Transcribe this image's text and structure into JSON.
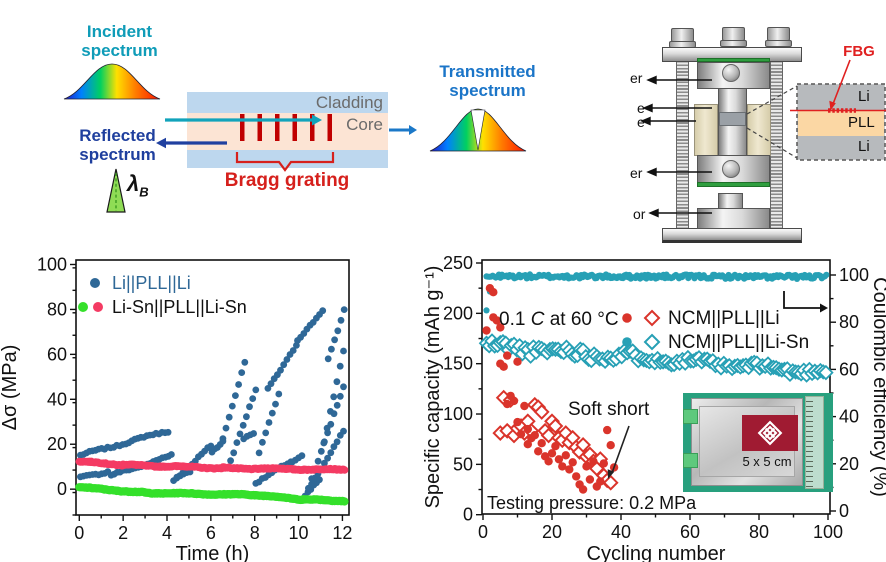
{
  "panel_fbg": {
    "incident": {
      "line1": "Incident",
      "line2": "spectrum",
      "color": "#0f9cb8"
    },
    "reflected": {
      "line1": "Reflected",
      "line2": "spectrum",
      "color": "#1f3f9e"
    },
    "transmitted": {
      "line1": "Transmitted",
      "line2": "spectrum",
      "color": "#1b75c8"
    },
    "cladding_label": "Cladding",
    "core_label": "Core",
    "bragg_label": "Bragg grating",
    "lambda_symbol": "λ",
    "lambda_sub": "B",
    "colors": {
      "cladding_fill": "#bdd7ee",
      "core_fill": "#fce4d4",
      "grating_bar": "#c00000",
      "incident_arrow": "#12a3bb",
      "reflected_arrow": "#2040a0",
      "transmitted_arrow": "#1b78c8",
      "bragg_red": "#d6201c",
      "gray_text": "#6b6b6b"
    }
  },
  "panel_cell": {
    "fbg_label": "FBG",
    "left_labels": [
      "er",
      "e",
      "e",
      "er",
      "or"
    ],
    "inset_labels": {
      "top": "Li",
      "mid": "PLL",
      "bottom": "Li"
    },
    "colors": {
      "fbg_red": "#e02020",
      "li_gray": "#b7babd",
      "pll_peach": "#fbd7a4"
    }
  },
  "chart_data": [
    {
      "type": "scatter",
      "title": "",
      "xlabel": "Time (h)",
      "ylabel": "Δσ (MPa)",
      "xlim": [
        -0.15,
        12.3
      ],
      "ylim": [
        -11.5,
        102
      ],
      "x_ticks": [
        0,
        2,
        4,
        6,
        8,
        10,
        12
      ],
      "y_ticks": [
        0,
        20,
        40,
        60,
        80,
        100
      ],
      "x_minor_step": 1,
      "y_minor_step": 10,
      "grid": false,
      "legend_position": "top-left",
      "legend": [
        {
          "label": "Li||PLL||Li",
          "markers": [
            "#2f6897"
          ],
          "label_color": "#2f6897"
        },
        {
          "label": "Li-Sn||PLL||Li-Sn",
          "markers": [
            "#35e02b",
            "#f43b63"
          ],
          "label_color": "#111111"
        }
      ],
      "series": [
        {
          "name": "Li||PLL||Li stress change",
          "marker": "circle",
          "r": 3.4,
          "color": "#2f6897",
          "step": 0.14,
          "wiggle": 0.7,
          "segments": [
            [
              0.05,
              15,
              4.05,
              26
            ],
            [
              0.05,
              5,
              1.3,
              8
            ],
            [
              1.45,
              6,
              4.2,
              15
            ],
            [
              4.3,
              4,
              6.0,
              19
            ],
            [
              4.45,
              5.5,
              5.05,
              7.5
            ],
            [
              6.05,
              17,
              6.55,
              21
            ],
            [
              6.55,
              22,
              7.55,
              57
            ],
            [
              6.9,
              13,
              8.05,
              44
            ],
            [
              7.5,
              22,
              7.95,
              25
            ],
            [
              8.05,
              3,
              9.65,
              12
            ],
            [
              8.2,
              16,
              9.1,
              42
            ],
            [
              8.6,
              45,
              9.9,
              64
            ],
            [
              9.95,
              66,
              11.1,
              80
            ],
            [
              9.7,
              12,
              10.15,
              15
            ],
            [
              10.3,
              -3,
              10.95,
              4
            ],
            [
              10.45,
              0,
              12.05,
              26
            ],
            [
              10.6,
              5,
              12.05,
              45
            ],
            [
              11.15,
              20,
              12.05,
              62
            ],
            [
              11.35,
              58,
              12.08,
              80
            ]
          ]
        },
        {
          "name": "Li-Sn||PLL||Li-Sn stress change (pink)",
          "marker": "circle",
          "r": 3.8,
          "color": "#f43b63",
          "step": 0.05,
          "wiggle": 0.45,
          "segments": [
            [
              0,
              12.3,
              2,
              10.8
            ],
            [
              2,
              10.8,
              6.5,
              9.4
            ],
            [
              6.5,
              9.4,
              12.1,
              8.6
            ]
          ]
        },
        {
          "name": "Li-Sn||PLL||Li-Sn stress change (green)",
          "marker": "circle",
          "r": 4.1,
          "color": "#35e02b",
          "step": 0.05,
          "wiggle": 0.35,
          "segments": [
            [
              0,
              0.8,
              3,
              -1.6
            ],
            [
              3,
              -1.6,
              8,
              -2.6
            ],
            [
              8,
              -2.6,
              10.2,
              -4.6
            ],
            [
              10.2,
              -4.6,
              12.1,
              -5.2
            ]
          ]
        }
      ]
    },
    {
      "type": "scatter",
      "title": "",
      "xlabel": "Cycling number",
      "ylabel_left": "Specific capacity (mAh g⁻¹)",
      "ylabel_right": "Coulombic efficiency (%)",
      "xlim": [
        0,
        101
      ],
      "ylim_left": [
        0,
        250
      ],
      "ylim_right": [
        0,
        100
      ],
      "x_ticks": [
        0,
        20,
        40,
        60,
        80,
        100
      ],
      "y_ticks_left": [
        0,
        50,
        100,
        150,
        200,
        250
      ],
      "y_ticks_right": [
        0,
        20,
        40,
        60,
        80,
        100
      ],
      "grid": false,
      "annotations": {
        "rate_prefix": "0.1 ",
        "rate_italic": "C",
        "rate_suffix": " at 60 °C",
        "soft_short": "Soft short",
        "pressure": "Testing pressure: 0.2 MPa",
        "inset_size": "5 x 5 cm"
      },
      "legend": [
        {
          "label": "NCM||PLL||Li",
          "color": "#da342b"
        },
        {
          "label": "NCM||PLL||Li-Sn",
          "color": "#27a0b5"
        }
      ],
      "series": [
        {
          "name": "NCM||PLL||Li-Sn capacity",
          "axis": "left",
          "marker": "diamond",
          "color": "#27a0b5",
          "size": 6.5,
          "band": {
            "from": 1,
            "to": 100,
            "start": 168,
            "end": 141,
            "jitter": 5,
            "step": 0.8
          },
          "wave": true,
          "taper": true
        },
        {
          "name": "NCM||PLL||Li-Sn coulombic efficiency",
          "axis": "right",
          "marker": "circle",
          "color": "#27a0b5",
          "r": 3.1,
          "band": {
            "from": 1,
            "to": 100,
            "start": 99.4,
            "end": 99.2,
            "jitter": 0.9,
            "step": 0.45
          },
          "points": [
            [
              1,
              85
            ],
            [
              2,
              93
            ]
          ]
        },
        {
          "name": "NCM||PLL||Li coulombic efficiency",
          "axis": "right",
          "marker": "diamond",
          "color": "#da342b",
          "size": 6.5,
          "points": [
            [
              5,
              33
            ],
            [
              6,
              48
            ],
            [
              7,
              34
            ],
            [
              8,
              47
            ],
            [
              9,
              32
            ],
            [
              10,
              35
            ],
            [
              11,
              36
            ],
            [
              12,
              33
            ],
            [
              13,
              38
            ],
            [
              14,
              34
            ],
            [
              15,
              45
            ],
            [
              16,
              44
            ],
            [
              17,
              42
            ],
            [
              18,
              34
            ],
            [
              19,
              32
            ],
            [
              20,
              38
            ],
            [
              21,
              36
            ],
            [
              22,
              31
            ],
            [
              23,
              30
            ],
            [
              24,
              33
            ],
            [
              25,
              29
            ],
            [
              26,
              31
            ],
            [
              27,
              27
            ],
            [
              28,
              25
            ],
            [
              29,
              28
            ],
            [
              30,
              23
            ],
            [
              31,
              24
            ],
            [
              32,
              21
            ],
            [
              33,
              18
            ],
            [
              34,
              22
            ],
            [
              35,
              15
            ],
            [
              36,
              13
            ],
            [
              37,
              12
            ]
          ]
        },
        {
          "name": "NCM||PLL||Li capacity",
          "axis": "left",
          "marker": "circle",
          "color": "#da342b",
          "r": 4.2,
          "points": [
            [
              1,
              183
            ],
            [
              2,
              225
            ],
            [
              3,
              221
            ],
            [
              3,
              196
            ],
            [
              4,
              193
            ],
            [
              5,
              186
            ],
            [
              5,
              150
            ],
            [
              6,
              147
            ],
            [
              7,
              158
            ],
            [
              7,
              110
            ],
            [
              8,
              118
            ],
            [
              9,
              113
            ],
            [
              10,
              152
            ],
            [
              10,
              92
            ],
            [
              11,
              80
            ],
            [
              12,
              108
            ],
            [
              13,
              85
            ],
            [
              13,
              70
            ],
            [
              14,
              76
            ],
            [
              15,
              79
            ],
            [
              16,
              63
            ],
            [
              17,
              71
            ],
            [
              18,
              58
            ],
            [
              19,
              53
            ],
            [
              20,
              61
            ],
            [
              21,
              68
            ],
            [
              22,
              55
            ],
            [
              23,
              48
            ],
            [
              24,
              59
            ],
            [
              25,
              45
            ],
            [
              26,
              52
            ],
            [
              27,
              38
            ],
            [
              28,
              30
            ],
            [
              29,
              25
            ],
            [
              30,
              48
            ],
            [
              31,
              35
            ],
            [
              32,
              53
            ],
            [
              33,
              28
            ],
            [
              34,
              33
            ],
            [
              35,
              51
            ],
            [
              36,
              84
            ],
            [
              37,
              69
            ],
            [
              38,
              47
            ]
          ]
        }
      ]
    }
  ]
}
